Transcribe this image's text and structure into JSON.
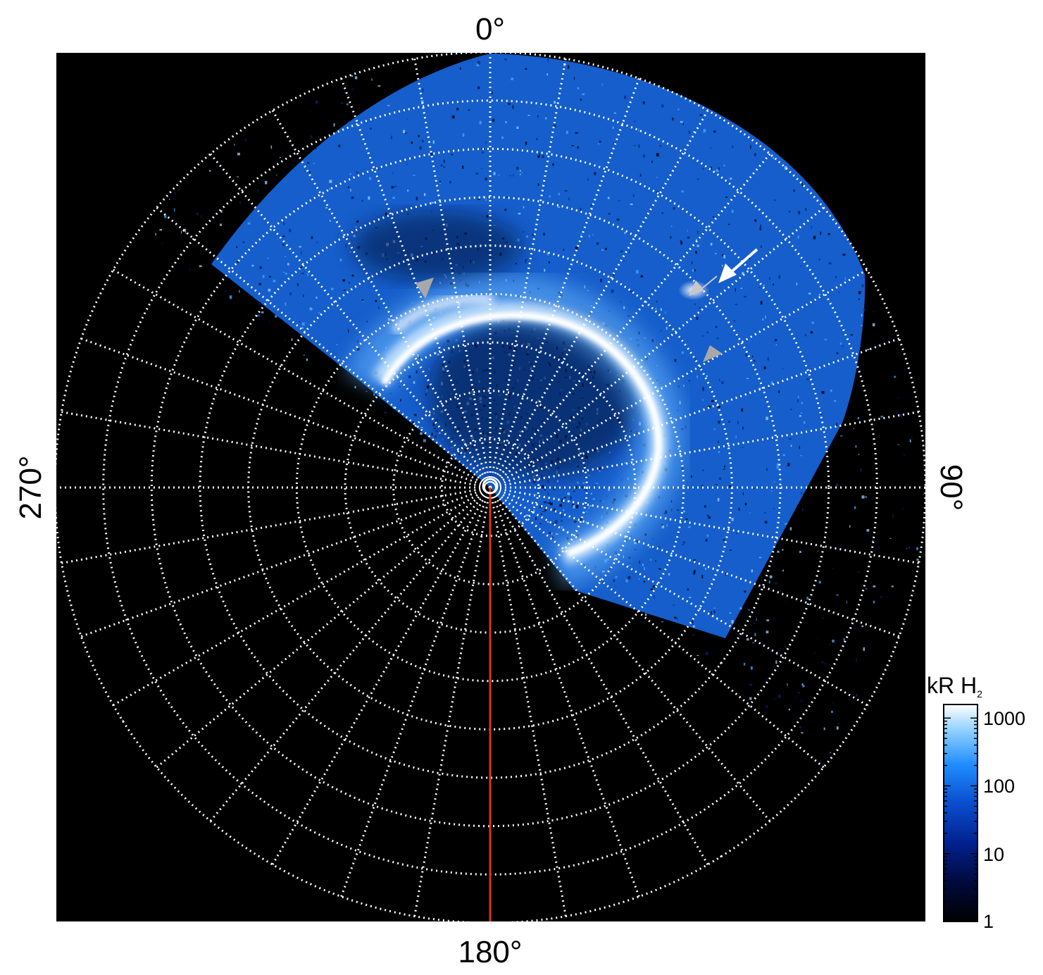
{
  "plot": {
    "background_color": "#000000",
    "grid_color": "#ffffff",
    "grid_style": "dotted",
    "meridian_line_color": "#d23a10",
    "angle_labels": {
      "top": "0°",
      "right": "90°",
      "bottom": "180°",
      "left": "270°"
    },
    "latitude_rings": 9,
    "longitude_spokes": 36
  },
  "colorbar": {
    "title_main": "kR H",
    "title_sub": "2",
    "scale": "log",
    "ticks": [
      "1000",
      "100",
      "10",
      "1"
    ],
    "colors": [
      "#000000",
      "#000a3c",
      "#001f8a",
      "#0a4fd0",
      "#1e8cff",
      "#8fd0ff",
      "#ffffff"
    ]
  },
  "annotations": [
    {
      "name": "arrow-upper-right-white",
      "color": "#ffffff"
    },
    {
      "name": "arrowhead-upper-right-gray",
      "color": "#c0c0c0"
    },
    {
      "name": "arrowhead-upper-left-gray",
      "color": "#a8a8a8"
    },
    {
      "name": "arrowhead-right-gray",
      "color": "#a8a8a8"
    }
  ]
}
